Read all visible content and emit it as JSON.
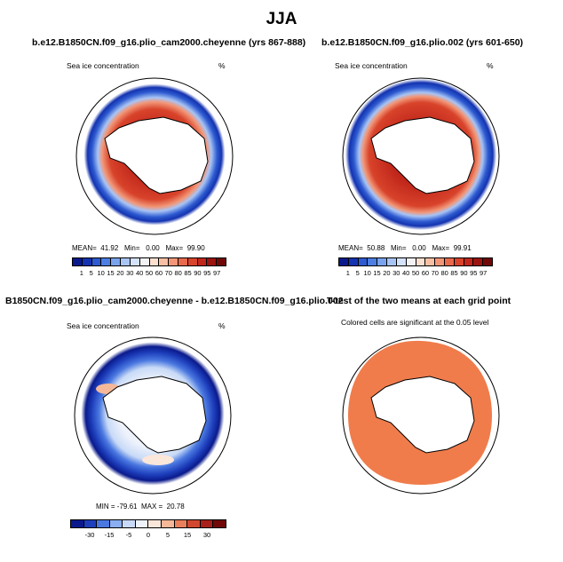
{
  "title": "JJA",
  "panels": [
    {
      "title": "b.e12.B1850CN.f09_g16.plio_cam2000.cheyenne (yrs 867-888)",
      "variable": "Sea ice concentration",
      "units": "%",
      "mean_label": "MEAN=",
      "mean": "41.92",
      "min_label": "Min=",
      "min": "0.00",
      "max_label": "Max=",
      "max": "99.90"
    },
    {
      "title": "b.e12.B1850CN.f09_g16.plio.002 (yrs 601-650)",
      "variable": "Sea ice concentration",
      "units": "%",
      "mean_label": "MEAN=",
      "mean": "50.88",
      "min_label": "Min=",
      "min": "0.00",
      "max_label": "Max=",
      "max": "99.91"
    },
    {
      "title": "B1850CN.f09_g16.plio_cam2000.cheyenne - b.e12.B1850CN.f09_g16.plio.002",
      "variable": "Sea ice concentration",
      "units": "%",
      "min_label": "MIN =",
      "min": "-79.61",
      "max_label": "MAX =",
      "max": "20.78"
    },
    {
      "title": "T-test of the two means at each grid point",
      "note": "Colored cells are significant at the 0.05 level"
    }
  ],
  "colorbar_levels": [
    "1",
    "5",
    "10",
    "15",
    "20",
    "30",
    "40",
    "50",
    "60",
    "70",
    "80",
    "85",
    "90",
    "95",
    "97"
  ],
  "colorbar_colors": [
    "#0a1a8c",
    "#1433b0",
    "#2d5ad0",
    "#4d7ee2",
    "#7aa3ee",
    "#a8c4f5",
    "#d4e2fa",
    "#f3f3f3",
    "#fbe0d0",
    "#f8bfa4",
    "#f29677",
    "#e8694b",
    "#d8432b",
    "#c0261a",
    "#9c1410",
    "#700808"
  ],
  "diff_levels": [
    "-30",
    "-15",
    "-5",
    "0",
    "5",
    "15",
    "30"
  ],
  "diff_colors": [
    "#0a1a8c",
    "#1e3fbc",
    "#4a78e0",
    "#8aaef0",
    "#c8daf7",
    "#eef2fb",
    "#fbe6da",
    "#f5b899",
    "#ea7f5c",
    "#d14830",
    "#a8201a",
    "#700808"
  ],
  "colors": {
    "land": "#ffffff",
    "ttest": "#f07c4c",
    "ice_core": "#cf3a1e",
    "ice_edge": "#1a3aa8"
  },
  "icons": {
    "coastline": "antarctica-coastline-icon"
  }
}
